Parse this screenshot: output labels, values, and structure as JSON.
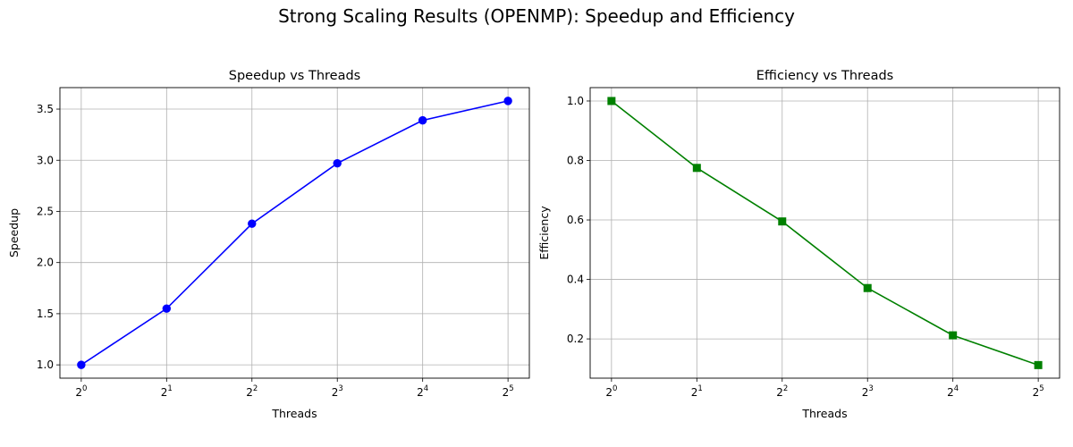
{
  "figure": {
    "title": "Strong Scaling Results (OPENMP): Speedup and Efficiency"
  },
  "chart_data": [
    {
      "type": "line",
      "title": "Speedup vs Threads",
      "xlabel": "Threads",
      "ylabel": "Speedup",
      "xscale": "log2",
      "x": [
        1,
        2,
        4,
        8,
        16,
        32
      ],
      "x_tick_exponents": [
        "0",
        "1",
        "2",
        "3",
        "4",
        "5"
      ],
      "ylim": [
        0.87,
        3.71
      ],
      "y_ticks": [
        "1.0",
        "1.5",
        "2.0",
        "2.5",
        "3.0",
        "3.5"
      ],
      "grid": true,
      "series": [
        {
          "values": [
            1.0,
            1.55,
            2.38,
            2.97,
            3.39,
            3.58
          ],
          "color": "#0000ff",
          "marker": "circle"
        }
      ]
    },
    {
      "type": "line",
      "title": "Efficiency vs Threads",
      "xlabel": "Threads",
      "ylabel": "Efficiency",
      "xscale": "log2",
      "x": [
        1,
        2,
        4,
        8,
        16,
        32
      ],
      "x_tick_exponents": [
        "0",
        "1",
        "2",
        "3",
        "4",
        "5"
      ],
      "ylim": [
        0.068,
        1.045
      ],
      "y_ticks": [
        "0.2",
        "0.4",
        "0.6",
        "0.8",
        "1.0"
      ],
      "grid": true,
      "series": [
        {
          "values": [
            1.0,
            0.775,
            0.595,
            0.371,
            0.212,
            0.112
          ],
          "color": "#008000",
          "marker": "square"
        }
      ]
    }
  ]
}
